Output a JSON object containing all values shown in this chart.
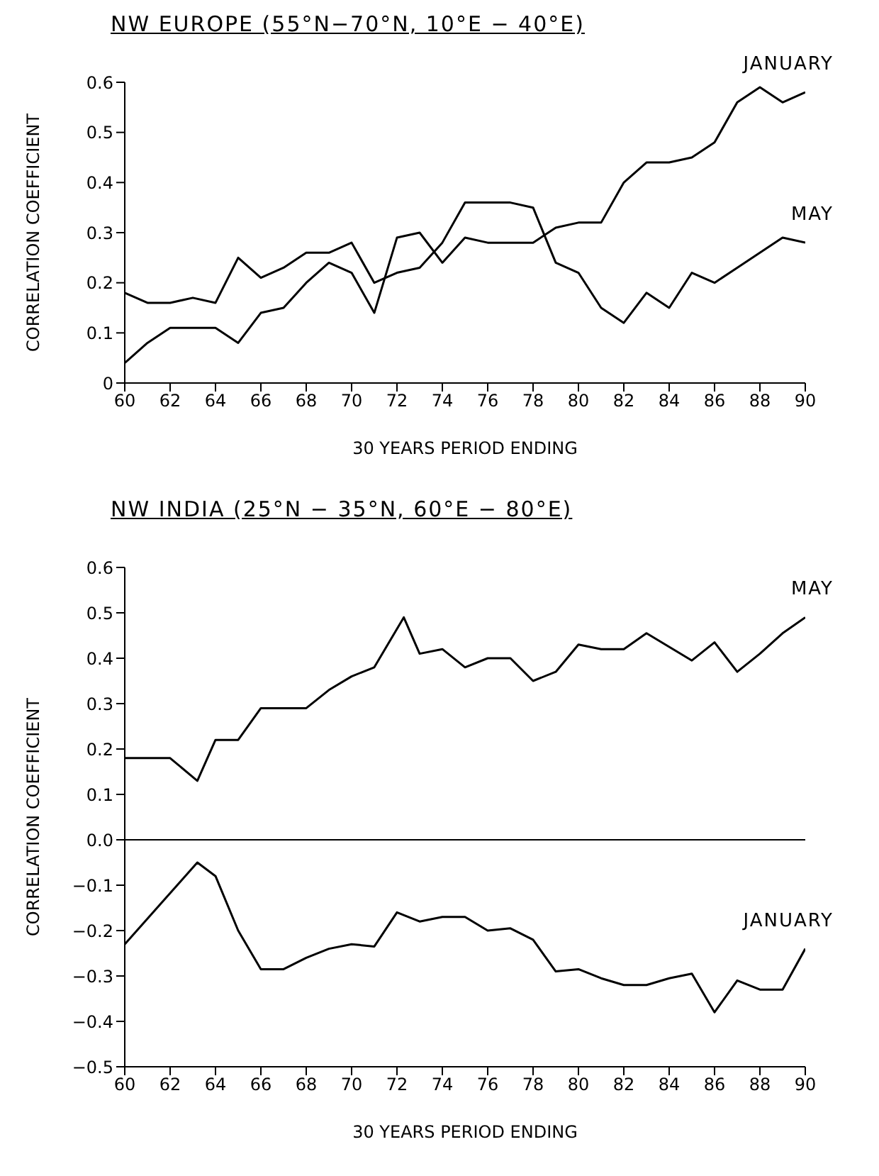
{
  "chart_data": [
    {
      "type": "line",
      "title": "NW EUROPE (55°N−70°N, 10°E − 40°E)",
      "xlabel": "30 YEARS PERIOD ENDING",
      "ylabel": "CORRELATION COEFFICIENT",
      "xlim": [
        60,
        90
      ],
      "xticks": [
        60,
        62,
        64,
        66,
        68,
        70,
        72,
        74,
        76,
        78,
        80,
        82,
        84,
        86,
        88,
        90
      ],
      "ylim": [
        0,
        0.6
      ],
      "yticks": [
        0,
        0.1,
        0.2,
        0.3,
        0.4,
        0.5,
        0.6
      ],
      "marker": "none",
      "series": [
        {
          "name": "JANUARY",
          "color": "#000000",
          "x": [
            60,
            61,
            62,
            63,
            64,
            65,
            66,
            67,
            68,
            69,
            70,
            71,
            72,
            73,
            74,
            75,
            76,
            77,
            78,
            79,
            80,
            81,
            82,
            83,
            84,
            85,
            86,
            87,
            88,
            89,
            90
          ],
          "values": [
            0.04,
            0.08,
            0.11,
            0.11,
            0.11,
            0.08,
            0.14,
            0.15,
            0.2,
            0.24,
            0.22,
            0.14,
            0.29,
            0.3,
            0.24,
            0.29,
            0.28,
            0.28,
            0.28,
            0.31,
            0.32,
            0.32,
            0.4,
            0.44,
            0.44,
            0.45,
            0.48,
            0.56,
            0.59,
            0.56,
            0.58
          ]
        },
        {
          "name": "MAY",
          "color": "#000000",
          "x": [
            60,
            61,
            62,
            63,
            64,
            65,
            66,
            67,
            68,
            69,
            70,
            71,
            72,
            73,
            74,
            75,
            76,
            77,
            78,
            79,
            80,
            81,
            82,
            83,
            84,
            85,
            86,
            87,
            88,
            89,
            90
          ],
          "values": [
            0.18,
            0.16,
            0.16,
            0.17,
            0.16,
            0.25,
            0.21,
            0.23,
            0.26,
            0.26,
            0.28,
            0.2,
            0.22,
            0.23,
            0.28,
            0.36,
            0.36,
            0.36,
            0.35,
            0.24,
            0.22,
            0.15,
            0.12,
            0.18,
            0.15,
            0.22,
            0.2,
            0.23,
            0.26,
            0.29,
            0.28
          ]
        }
      ]
    },
    {
      "type": "line",
      "title": "NW INDIA (25°N − 35°N, 60°E − 80°E)",
      "xlabel": "30 YEARS PERIOD ENDING",
      "ylabel": "CORRELATION COEFFICIENT",
      "xlim": [
        60,
        90
      ],
      "xticks": [
        60,
        62,
        64,
        66,
        68,
        70,
        72,
        74,
        76,
        78,
        80,
        82,
        84,
        86,
        88,
        90
      ],
      "ylim": [
        -0.5,
        0.6
      ],
      "yticks": [
        {
          "value": -0.5,
          "label": "−0.5"
        },
        {
          "value": -0.4,
          "label": "−0.4"
        },
        {
          "value": -0.3,
          "label": "−0.3"
        },
        {
          "value": -0.2,
          "label": "−0.2"
        },
        {
          "value": -0.1,
          "label": "−0.1"
        },
        {
          "value": 0,
          "label": "0.0"
        },
        0.1,
        0.2,
        0.3,
        0.4,
        0.5,
        0.6
      ],
      "marker": "none",
      "ref_lines": [
        {
          "axis": "y",
          "value": 0,
          "color": "#000000"
        }
      ],
      "series": [
        {
          "name": "MAY",
          "color": "#000000",
          "x": [
            60,
            62,
            63.2,
            64,
            65,
            66,
            67,
            68,
            69,
            70,
            71,
            72.3,
            73,
            74,
            75,
            76,
            77,
            78,
            79,
            80,
            81,
            82,
            83,
            84,
            85,
            86,
            87,
            88,
            89,
            90
          ],
          "values": [
            0.18,
            0.18,
            0.13,
            0.22,
            0.22,
            0.29,
            0.29,
            0.29,
            0.33,
            0.36,
            0.38,
            0.49,
            0.41,
            0.42,
            0.38,
            0.4,
            0.4,
            0.35,
            0.37,
            0.43,
            0.42,
            0.42,
            0.455,
            0.425,
            0.395,
            0.435,
            0.37,
            0.41,
            0.455,
            0.49
          ]
        },
        {
          "name": "JANUARY",
          "color": "#000000",
          "x": [
            60,
            63.2,
            64,
            65,
            66,
            67,
            68,
            69,
            70,
            71,
            72,
            73,
            74,
            75,
            76,
            77,
            78,
            79,
            80,
            81,
            82,
            83,
            84,
            85,
            86,
            87,
            88,
            89,
            90
          ],
          "values": [
            -0.23,
            -0.05,
            -0.08,
            -0.2,
            -0.285,
            -0.285,
            -0.26,
            -0.24,
            -0.23,
            -0.235,
            -0.16,
            -0.18,
            -0.17,
            -0.17,
            -0.2,
            -0.195,
            -0.22,
            -0.29,
            -0.285,
            -0.305,
            -0.32,
            -0.32,
            -0.305,
            -0.295,
            -0.38,
            -0.31,
            -0.33,
            -0.33,
            -0.24
          ]
        }
      ]
    }
  ]
}
